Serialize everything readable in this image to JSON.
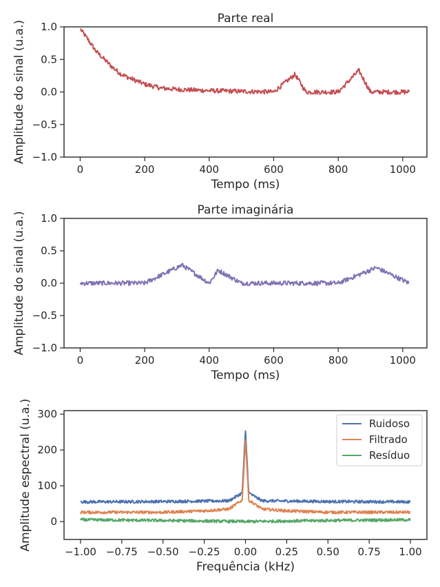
{
  "chart_data": [
    {
      "type": "line",
      "title": "Parte real",
      "xlabel": "Tempo (ms)",
      "ylabel": "Amplitude do sinal (u.a.)",
      "xlim": [
        -50,
        1075
      ],
      "ylim": [
        -1.0,
        1.0
      ],
      "xticks": [
        0,
        200,
        400,
        600,
        800,
        1000
      ],
      "xtick_labels": [
        "0",
        "200",
        "400",
        "600",
        "800",
        "1000"
      ],
      "yticks": [
        -1.0,
        -0.5,
        0.0,
        0.5,
        1.0
      ],
      "ytick_labels": [
        "−1.0",
        "−0.5",
        "0.0",
        "0.5",
        "1.0"
      ],
      "grid": false,
      "series": [
        {
          "color": "#c44e52",
          "x": [
            0,
            25,
            50,
            75,
            100,
            125,
            150,
            200,
            250,
            300,
            400,
            500,
            600,
            666,
            700,
            800,
            864,
            900,
            1000,
            1020
          ],
          "y": [
            0.97,
            0.8,
            0.62,
            0.5,
            0.38,
            0.28,
            0.22,
            0.12,
            0.06,
            0.04,
            0.02,
            0.01,
            0.0,
            0.27,
            0.0,
            0.0,
            0.33,
            0.0,
            0.0,
            0.0
          ]
        }
      ]
    },
    {
      "type": "line",
      "title": "Parte imaginária",
      "xlabel": "Tempo (ms)",
      "ylabel": "Amplitude do sinal (u.a.)",
      "xlim": [
        -50,
        1075
      ],
      "ylim": [
        -1.0,
        1.0
      ],
      "xticks": [
        0,
        200,
        400,
        600,
        800,
        1000
      ],
      "xtick_labels": [
        "0",
        "200",
        "400",
        "600",
        "800",
        "1000"
      ],
      "yticks": [
        -1.0,
        -0.5,
        0.0,
        0.5,
        1.0
      ],
      "ytick_labels": [
        "−1.0",
        "−0.5",
        "0.0",
        "0.5",
        "1.0"
      ],
      "grid": false,
      "series": [
        {
          "color": "#8172b3",
          "x": [
            0,
            100,
            200,
            316,
            400,
            428,
            500,
            600,
            700,
            800,
            918,
            1020
          ],
          "y": [
            0.0,
            0.0,
            0.0,
            0.28,
            0.0,
            0.2,
            0.0,
            0.0,
            0.0,
            0.0,
            0.24,
            0.0
          ]
        }
      ]
    },
    {
      "type": "line",
      "title": "",
      "xlabel": "Frequência (kHz)",
      "ylabel": "Amplitude espectral (u.a.)",
      "xlim": [
        -1.1,
        1.1
      ],
      "ylim": [
        -50,
        310
      ],
      "xticks": [
        -1.0,
        -0.75,
        -0.5,
        -0.25,
        0.0,
        0.25,
        0.5,
        0.75,
        1.0
      ],
      "xtick_labels": [
        "−1.00",
        "−0.75",
        "−0.50",
        "−0.25",
        "0.00",
        "0.25",
        "0.50",
        "0.75",
        "1.00"
      ],
      "yticks": [
        0,
        100,
        200,
        300
      ],
      "ytick_labels": [
        "0",
        "100",
        "200",
        "300"
      ],
      "grid": false,
      "legend": "top-right",
      "series": [
        {
          "name": "Ruidoso",
          "color": "#4c72b0",
          "x": [
            -1.0,
            -0.5,
            -0.1,
            -0.02,
            0.0,
            0.02,
            0.1,
            0.5,
            1.0
          ],
          "y": [
            55,
            56,
            58,
            80,
            253,
            80,
            58,
            56,
            55
          ]
        },
        {
          "name": "Filtrado",
          "color": "#dd8452",
          "x": [
            -1.0,
            -0.5,
            -0.25,
            -0.1,
            -0.02,
            0.0,
            0.02,
            0.1,
            0.25,
            0.5,
            1.0
          ],
          "y": [
            26,
            26,
            30,
            35,
            60,
            228,
            60,
            35,
            30,
            26,
            26
          ]
        },
        {
          "name": "Resíduo",
          "color": "#55a868",
          "x": [
            -1.0,
            -0.5,
            0.0,
            0.5,
            1.0
          ],
          "y": [
            5,
            3,
            0,
            3,
            5
          ]
        }
      ]
    }
  ]
}
